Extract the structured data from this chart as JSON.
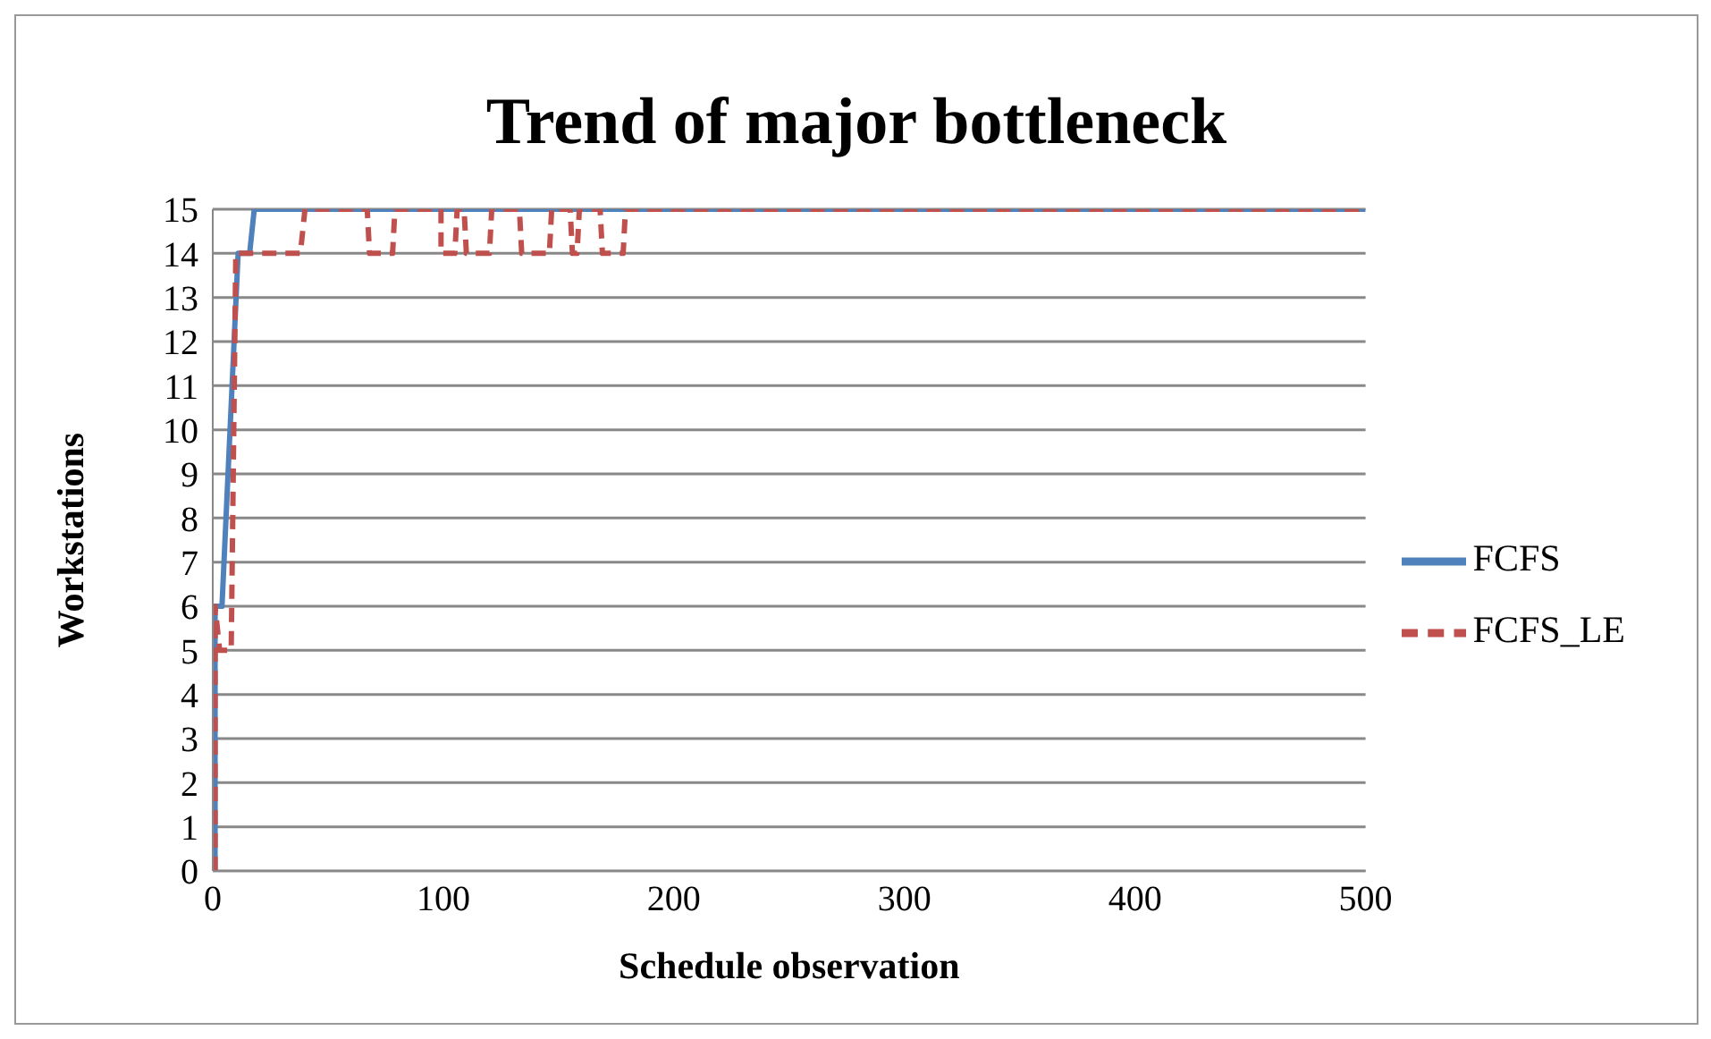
{
  "chart_data": {
    "type": "line",
    "title": "Trend of major bottleneck",
    "xlabel": "Schedule observation",
    "ylabel": "Workstations",
    "xlim": [
      0,
      500
    ],
    "xticks": [
      0,
      100,
      200,
      300,
      400,
      500
    ],
    "ylim": [
      0,
      15
    ],
    "yticks": [
      0,
      1,
      2,
      3,
      4,
      5,
      6,
      7,
      8,
      9,
      10,
      11,
      12,
      13,
      14,
      15
    ],
    "grid": "y",
    "legend": "right",
    "marker": "none",
    "series": [
      {
        "name": "FCFS",
        "color": "#4f81bd",
        "line_style": "solid",
        "x": [
          1,
          1,
          4,
          11,
          16,
          18,
          500
        ],
        "values": [
          0,
          6,
          6,
          14,
          14,
          15,
          15
        ]
      },
      {
        "name": "FCFS_LE",
        "color": "#c0504d",
        "line_style": "dashed",
        "x": [
          1,
          1,
          3,
          8,
          10,
          38,
          40,
          67,
          68,
          78,
          79,
          99,
          99,
          105,
          106,
          109,
          110,
          120,
          121,
          133,
          134,
          146,
          147,
          155,
          156,
          158,
          159,
          168,
          169,
          178,
          179,
          500
        ],
        "values": [
          0,
          6,
          5,
          5,
          14,
          14,
          15,
          15,
          14,
          14,
          15,
          15,
          14,
          14,
          15,
          15,
          14,
          14,
          15,
          15,
          14,
          14,
          15,
          15,
          14,
          14,
          15,
          15,
          14,
          14,
          15,
          15
        ]
      }
    ]
  }
}
